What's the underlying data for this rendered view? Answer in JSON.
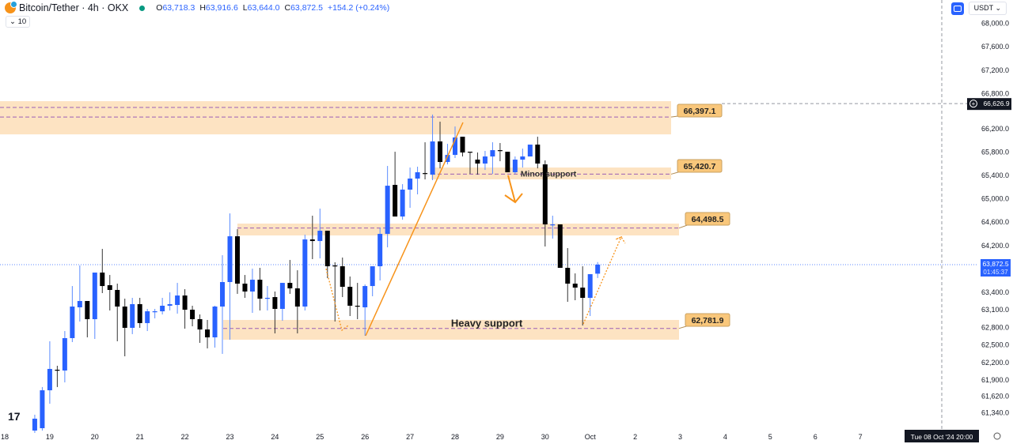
{
  "header": {
    "symbol_title": "Bitcoin/Tether · 4h · OKX",
    "status_color": "#089981",
    "ohlc": {
      "o_label": "O",
      "o": "63,718.3",
      "h_label": "H",
      "h": "63,916.6",
      "l_label": "L",
      "l": "63,644.0",
      "c_label": "C",
      "c": "63,872.5",
      "change": "+154.2 (+0.24%)"
    },
    "indicator_count": "10",
    "currency": "USDT",
    "currency_icon": "chevron-down-icon"
  },
  "colors": {
    "up": "#2962ff",
    "down": "#000000",
    "zone": "#fde3c2",
    "accent_line": "#f7931a",
    "zone_dash": "#9c5fb5",
    "last_price": "#2962ff",
    "callout": "#f9c77b"
  },
  "chart_data": {
    "type": "candlestick",
    "title": "",
    "interval": "4h",
    "x_ticks": [
      "18",
      "19",
      "20",
      "21",
      "22",
      "23",
      "24",
      "25",
      "26",
      "27",
      "28",
      "29",
      "30",
      "Oct",
      "2",
      "3",
      "4",
      "5",
      "6",
      "7"
    ],
    "y_ticks": [
      "68,000.0",
      "67,600.0",
      "67,200.0",
      "66,800.0",
      "66,200.0",
      "65,800.0",
      "65,400.0",
      "65,000.0",
      "64,600.0",
      "64,200.0",
      "63,400.0",
      "63,100.0",
      "62,800.0",
      "62,500.0",
      "62,200.0",
      "61,900.0",
      "61,620.0",
      "61,340.0"
    ],
    "y_tick_values": [
      68000,
      67600,
      67200,
      66800,
      66200,
      65800,
      65400,
      65000,
      64600,
      64200,
      63400,
      63100,
      62800,
      62500,
      62200,
      61900,
      61620,
      61340
    ],
    "candles_ohlc": [
      [
        61035,
        61306,
        60995,
        61238
      ],
      [
        61075,
        61779,
        61035,
        61724
      ],
      [
        61724,
        62562,
        61494,
        62089
      ],
      [
        62075,
        62143,
        61779,
        62062
      ],
      [
        62062,
        62737,
        61859,
        62616
      ],
      [
        62616,
        63507,
        62548,
        63156
      ],
      [
        63143,
        63859,
        62900,
        63251
      ],
      [
        63251,
        63251,
        62629,
        62940
      ],
      [
        62940,
        63737,
        62602,
        63737
      ],
      [
        63737,
        64142,
        63386,
        63507
      ],
      [
        63521,
        63696,
        63089,
        63440
      ],
      [
        63440,
        63548,
        62562,
        63156
      ],
      [
        63156,
        63291,
        62305,
        62792
      ],
      [
        62792,
        63305,
        62684,
        63197
      ],
      [
        63197,
        63305,
        62792,
        62873
      ],
      [
        62873,
        63116,
        62737,
        63075
      ],
      [
        63062,
        63116,
        62954,
        63075
      ],
      [
        63075,
        63305,
        63021,
        63170
      ],
      [
        63170,
        63399,
        63089,
        63197
      ],
      [
        63183,
        63561,
        63035,
        63345
      ],
      [
        63345,
        63453,
        62778,
        63102
      ],
      [
        63102,
        63170,
        62818,
        62940
      ],
      [
        62940,
        63021,
        62535,
        62764
      ],
      [
        62764,
        62927,
        62440,
        62629
      ],
      [
        62629,
        63170,
        62454,
        63156
      ],
      [
        63156,
        64034,
        62346,
        63575
      ],
      [
        63575,
        64750,
        62589,
        64358
      ],
      [
        64358,
        64480,
        63373,
        63548
      ],
      [
        63548,
        63696,
        63305,
        63413
      ],
      [
        63413,
        63804,
        63048,
        63615
      ],
      [
        63615,
        63818,
        63089,
        63291
      ],
      [
        63291,
        63507,
        63089,
        63305
      ],
      [
        63318,
        63413,
        62697,
        63116
      ],
      [
        63116,
        63561,
        62913,
        63561
      ],
      [
        63561,
        63953,
        63373,
        63467
      ],
      [
        63467,
        63777,
        62697,
        63156
      ],
      [
        63156,
        64385,
        63089,
        64304
      ],
      [
        64304,
        64710,
        63967,
        64277
      ],
      [
        64277,
        64831,
        63980,
        64453
      ],
      [
        64453,
        64453,
        63642,
        63845
      ],
      [
        63859,
        63913,
        62900,
        63845
      ],
      [
        63845,
        63994,
        63318,
        63494
      ],
      [
        63494,
        63670,
        62994,
        63170
      ],
      [
        63170,
        63561,
        62940,
        63156
      ],
      [
        63143,
        63534,
        62656,
        63507
      ],
      [
        63507,
        63845,
        63332,
        63845
      ],
      [
        63845,
        64507,
        63602,
        64399
      ],
      [
        64399,
        65561,
        64169,
        65223
      ],
      [
        65237,
        65804,
        64696,
        64696
      ],
      [
        64696,
        65250,
        64642,
        65156
      ],
      [
        65156,
        65534,
        64845,
        65345
      ],
      [
        65345,
        65548,
        65075,
        65453
      ],
      [
        65439,
        65966,
        65331,
        65426
      ],
      [
        65412,
        66439,
        65318,
        65980
      ],
      [
        65980,
        66318,
        65520,
        65629
      ],
      [
        65629,
        65939,
        65588,
        65750
      ],
      [
        65750,
        66236,
        65696,
        66048
      ],
      [
        66061,
        66061,
        65723,
        65791
      ],
      [
        65804,
        65804,
        65426,
        65791
      ],
      [
        65669,
        65791,
        65412,
        65602
      ],
      [
        65602,
        65818,
        65493,
        65723
      ],
      [
        65723,
        65966,
        65426,
        65831
      ],
      [
        65831,
        65953,
        65642,
        65818
      ],
      [
        65804,
        65804,
        65453,
        65453
      ],
      [
        65453,
        65723,
        65426,
        65669
      ],
      [
        65669,
        65858,
        65534,
        65723
      ],
      [
        65723,
        65926,
        65723,
        65926
      ],
      [
        65926,
        66061,
        65520,
        65602
      ],
      [
        65588,
        65656,
        64183,
        64561
      ],
      [
        64548,
        64710,
        64318,
        64561
      ],
      [
        64561,
        64561,
        63818,
        63818
      ],
      [
        63818,
        64156,
        63237,
        63548
      ],
      [
        63548,
        63723,
        63264,
        63480
      ],
      [
        63480,
        63845,
        62832,
        63305
      ],
      [
        63305,
        63710,
        62994,
        63710
      ],
      [
        63718.3,
        63916.6,
        63644.0,
        63872.5
      ]
    ],
    "zones": [
      {
        "top": 66669,
        "bottom": 66101,
        "lines": [
          66561,
          66397.1
        ],
        "callout": "66,397.1"
      },
      {
        "top": 65534,
        "bottom": 65331,
        "lines": [
          65420.7
        ],
        "callout": "65,420.7",
        "text": "Minor support"
      },
      {
        "top": 64575,
        "bottom": 64372,
        "lines": [
          64498.5
        ],
        "callout": "64,498.5"
      },
      {
        "top": 62927,
        "bottom": 62589,
        "lines": [
          62781.9
        ],
        "callout": "62,781.9",
        "text": "Heavy support"
      }
    ],
    "last_price": {
      "value": 63872.5,
      "label": "63,872.5",
      "countdown": "01:45:37"
    },
    "crosshair": {
      "price_label": "66,626.9",
      "price": 66626.9,
      "time_label": "Tue 08 Oct '24   20:00"
    }
  }
}
